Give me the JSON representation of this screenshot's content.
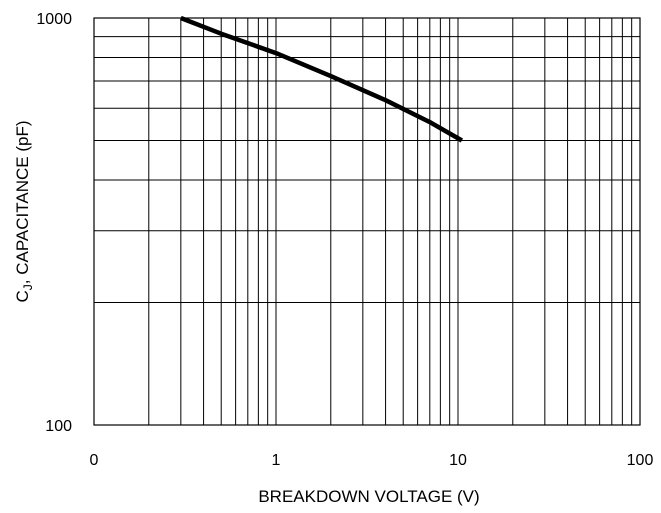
{
  "chart_data": {
    "type": "line",
    "title": "",
    "xlabel": "BREAKDOWN VOLTAGE (V)",
    "ylabel": {
      "prefix": "C",
      "subscript": "J",
      "suffix": ", CAPACITANCE (pF)"
    },
    "x_scale": "log",
    "y_scale": "log",
    "xlim": [
      0.1,
      100
    ],
    "ylim": [
      100,
      1000
    ],
    "x_tick_labels": [
      "0",
      "1",
      "10",
      "100"
    ],
    "y_tick_labels": [
      "100",
      "1000"
    ],
    "grid": true,
    "series": [
      {
        "x": [
          0.3,
          0.5,
          1,
          2,
          4,
          7,
          10.5
        ],
        "y": [
          1000,
          915,
          820,
          720,
          628,
          555,
          500
        ]
      }
    ],
    "colors": {
      "line": "#000000",
      "grid": "#000000",
      "background": "#ffffff"
    }
  }
}
